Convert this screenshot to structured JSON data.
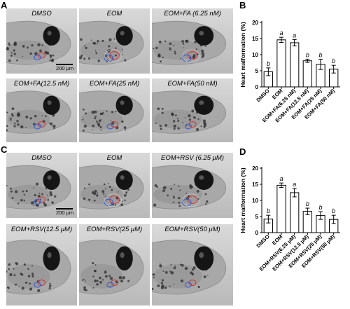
{
  "panels": {
    "A": "A",
    "B": "B",
    "C": "C",
    "D": "D"
  },
  "panel_a": {
    "images": [
      {
        "label": "DMSO",
        "defect": false
      },
      {
        "label": "EOM",
        "defect": true
      },
      {
        "label": "EOM+FA (6.25 nM)",
        "defect": true
      },
      {
        "label": "EOM+FA(12.5 nM)",
        "defect": false
      },
      {
        "label": "EOM+FA(25 nM)",
        "defect": false
      },
      {
        "label": "EOM+FA(50 nM)",
        "defect": false
      }
    ],
    "scale_bar": "200 μm"
  },
  "panel_c": {
    "images": [
      {
        "label": "DMSO",
        "defect": false
      },
      {
        "label": "EOM",
        "defect": true
      },
      {
        "label": "EOM+RSV (6.25 μM)",
        "defect": true
      },
      {
        "label": "EOM+RSV(12.5 μM)",
        "defect": false
      },
      {
        "label": "EOM+RSV(25 μM)",
        "defect": false
      },
      {
        "label": "EOM+RSV(50 μM)",
        "defect": false
      }
    ],
    "scale_bar": "200 μm"
  },
  "chart_data": [
    {
      "type": "bar",
      "panel": "B",
      "ylabel": "Heart malformation (%)",
      "ylim": [
        0,
        20
      ],
      "yticks": [
        0,
        5,
        10,
        15,
        20
      ],
      "categories": [
        "DMSO",
        "EOM",
        "EOM+FA(6.25 nM)",
        "EOM+FA(12.5 nM)",
        "EOM+FA(25 nM)",
        "EOM+FA(50 nM)"
      ],
      "values": [
        4.7,
        14.6,
        13.7,
        8.1,
        7.0,
        5.5
      ],
      "errors": [
        1.2,
        0.8,
        1.0,
        0.5,
        1.6,
        1.2
      ],
      "annotations": [
        "b",
        "a",
        "a",
        "b",
        "b",
        "b"
      ],
      "bar_fill": "#ffffff",
      "bar_stroke": "#000000"
    },
    {
      "type": "bar",
      "panel": "D",
      "ylabel": "Heart malformation (%)",
      "ylim": [
        0,
        20
      ],
      "yticks": [
        0,
        5,
        10,
        15,
        20
      ],
      "categories": [
        "DMSO",
        "EOM",
        "EOM+RSV(6.25 μM)",
        "EOM+RSV(12.5 μM)",
        "EOM+RSV(25 μM)",
        "EOM+RSV(50 μM)"
      ],
      "values": [
        4.2,
        14.7,
        12.4,
        6.6,
        5.3,
        4.1
      ],
      "errors": [
        1.2,
        0.7,
        1.3,
        1.0,
        1.2,
        1.3
      ],
      "annotations": [
        "b",
        "a",
        "a",
        "b",
        "b",
        "b"
      ],
      "bar_fill": "#ffffff",
      "bar_stroke": "#000000"
    }
  ]
}
